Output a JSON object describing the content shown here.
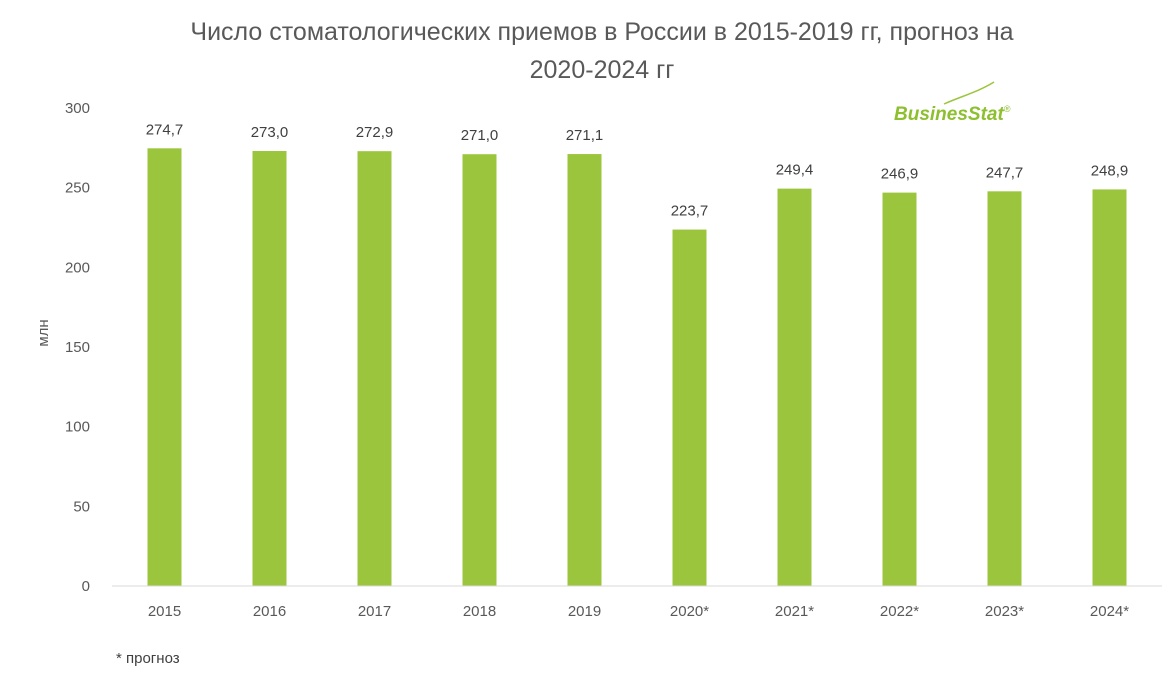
{
  "chart_data": {
    "type": "bar",
    "title_lines": [
      "Число стоматологических приемов в России в 2015-2019 гг, прогноз на",
      "2020-2024 гг"
    ],
    "categories": [
      "2015",
      "2016",
      "2017",
      "2018",
      "2019",
      "2020*",
      "2021*",
      "2022*",
      "2023*",
      "2024*"
    ],
    "values": [
      274.7,
      273.0,
      272.9,
      271.0,
      271.1,
      223.7,
      249.4,
      246.9,
      247.7,
      248.9
    ],
    "data_labels": [
      "274,7",
      "273,0",
      "272,9",
      "271,0",
      "271,1",
      "223,7",
      "249,4",
      "246,9",
      "247,7",
      "248,9"
    ],
    "ylabel": "млн",
    "ylim": [
      0,
      300
    ],
    "yticks": [
      0,
      50,
      100,
      150,
      200,
      250,
      300
    ],
    "grid": false,
    "bar_color": "#9bc53d",
    "footnote": "* прогноз",
    "logo": {
      "text_a": "Busines",
      "text_b": "Stat",
      "mark": "®"
    }
  }
}
